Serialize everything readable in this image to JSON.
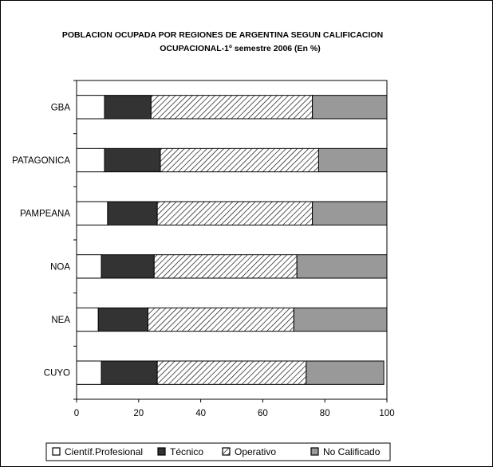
{
  "chart_data": {
    "type": "bar",
    "orientation": "horizontal",
    "stacked": true,
    "title_line1": "POBLACION OCUPADA POR REGIONES DE ARGENTINA  SEGUN CALIFICACION",
    "title_line2": "OCUPACIONAL-1º semestre 2006 (En %)",
    "categories": [
      "GBA",
      "PATAGONICA",
      "PAMPEANA",
      "NOA",
      "NEA",
      "CUYO"
    ],
    "xlim": [
      0,
      100
    ],
    "xticks": [
      0,
      20,
      40,
      60,
      80,
      100
    ],
    "grid": false,
    "legend_position": "bottom",
    "series": [
      {
        "name": "Científ.Profesional",
        "color": "#ffffff",
        "pattern": "solid",
        "values": [
          9,
          9,
          10,
          8,
          7,
          8
        ]
      },
      {
        "name": "Técnico",
        "color": "#333333",
        "pattern": "solid",
        "values": [
          15,
          18,
          16,
          17,
          16,
          18
        ]
      },
      {
        "name": "Operativo",
        "color": "#ffffff",
        "pattern": "diagonal-hatch",
        "values": [
          52,
          51,
          50,
          46,
          47,
          48
        ]
      },
      {
        "name": "No Calificado",
        "color": "#999999",
        "pattern": "solid",
        "values": [
          24,
          22,
          24,
          29,
          30,
          25
        ]
      }
    ]
  }
}
